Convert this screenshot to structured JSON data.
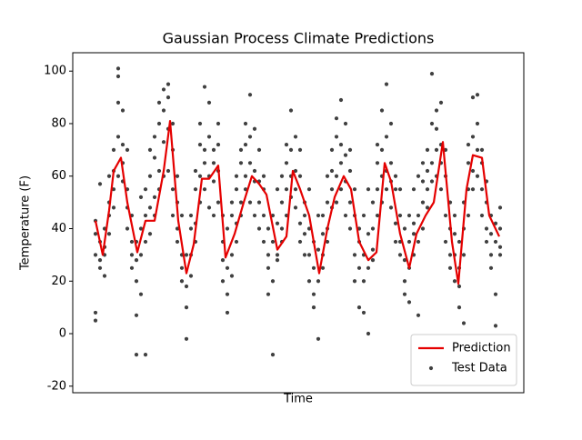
{
  "chart_data": {
    "type": "line",
    "title": "Gaussian Process Climate Predictions",
    "x_label": "Time",
    "y_label": "Temperature (F)",
    "xlim": [
      0,
      99.2
    ],
    "ylim": [
      -22.5,
      107
    ],
    "yticks": [
      -20,
      0,
      20,
      40,
      60,
      80,
      100
    ],
    "legend": "lower right",
    "series": [
      {
        "name": "Prediction",
        "type": "line",
        "color": "#e50000",
        "x": [
          5,
          6.6,
          8,
          9,
          10.6,
          12,
          14.2,
          16,
          18,
          20,
          21.4,
          23.2,
          25,
          26.6,
          28.4,
          30,
          32,
          33.6,
          35.6,
          37.6,
          39.4,
          41,
          42.6,
          45,
          47,
          48.4,
          50,
          52,
          54.2,
          56,
          57.6,
          59.6,
          61.2,
          63,
          65,
          66.8,
          68.6,
          70,
          72,
          74,
          75.6,
          77.6,
          79.4,
          81.4,
          83.4,
          84.8,
          86.6,
          88,
          90,
          91.6,
          93.8
        ],
        "values": [
          43,
          30,
          47,
          62,
          67,
          50,
          31,
          43,
          43,
          62,
          81,
          43,
          23,
          34,
          59,
          59,
          64,
          29,
          38,
          50,
          60,
          57,
          53,
          32,
          37,
          62,
          55,
          45,
          23,
          40,
          52,
          60,
          55,
          35,
          28,
          31,
          65,
          58,
          38,
          25,
          38,
          45,
          50,
          73,
          35,
          19,
          55,
          68,
          67,
          45,
          37
        ]
      },
      {
        "name": "Test Data",
        "type": "scatter",
        "color": "#000000",
        "x": [
          5,
          5,
          5,
          5,
          5,
          6,
          6,
          6,
          6,
          7,
          7,
          7,
          7,
          8,
          8,
          8,
          8,
          9,
          9,
          9,
          9,
          10,
          10,
          10,
          10,
          10,
          11,
          11,
          11,
          11,
          12,
          12,
          12,
          12,
          13,
          13,
          13,
          13,
          14,
          14,
          14,
          14,
          14,
          15,
          15,
          15,
          15,
          16,
          16,
          16,
          16,
          17,
          17,
          17,
          17,
          18,
          18,
          18,
          18,
          19,
          19,
          19,
          19,
          20,
          20,
          20,
          20,
          21,
          21,
          21,
          21,
          22,
          22,
          22,
          22,
          23,
          23,
          23,
          23,
          24,
          24,
          24,
          24,
          25,
          25,
          25,
          25,
          26,
          26,
          26,
          26,
          27,
          27,
          27,
          27,
          28,
          28,
          28,
          28,
          29,
          29,
          29,
          29,
          30,
          30,
          30,
          30,
          31,
          31,
          31,
          31,
          32,
          32,
          32,
          32,
          33,
          33,
          33,
          33,
          34,
          34,
          34,
          34,
          35,
          35,
          35,
          35,
          36,
          36,
          36,
          36,
          37,
          37,
          37,
          37,
          38,
          38,
          38,
          38,
          39,
          39,
          39,
          39,
          40,
          40,
          40,
          40,
          41,
          41,
          41,
          41,
          42,
          42,
          42,
          42,
          43,
          43,
          43,
          43,
          44,
          44,
          44,
          44,
          45,
          45,
          45,
          45,
          46,
          46,
          46,
          46,
          47,
          47,
          47,
          47,
          48,
          48,
          48,
          48,
          49,
          49,
          49,
          49,
          50,
          50,
          50,
          50,
          51,
          51,
          51,
          51,
          52,
          52,
          52,
          52,
          53,
          53,
          53,
          53,
          54,
          54,
          54,
          54,
          55,
          55,
          55,
          55,
          56,
          56,
          56,
          56,
          57,
          57,
          57,
          57,
          58,
          58,
          58,
          58,
          59,
          59,
          59,
          59,
          60,
          60,
          60,
          60,
          61,
          61,
          61,
          61,
          62,
          62,
          62,
          62,
          63,
          63,
          63,
          63,
          64,
          64,
          64,
          64,
          65,
          65,
          65,
          65,
          66,
          66,
          66,
          66,
          67,
          67,
          67,
          67,
          68,
          68,
          68,
          68,
          69,
          69,
          69,
          69,
          70,
          70,
          70,
          70,
          71,
          71,
          71,
          71,
          72,
          72,
          72,
          72,
          73,
          73,
          73,
          73,
          74,
          74,
          74,
          74,
          75,
          75,
          75,
          75,
          76,
          76,
          76,
          76,
          77,
          77,
          77,
          77,
          78,
          78,
          78,
          78,
          79,
          79,
          79,
          79,
          80,
          80,
          80,
          80,
          81,
          81,
          81,
          81,
          82,
          82,
          82,
          82,
          83,
          83,
          83,
          83,
          84,
          84,
          84,
          84,
          85,
          85,
          85,
          85,
          86,
          86,
          86,
          86,
          87,
          87,
          87,
          87,
          88,
          88,
          88,
          88,
          89,
          89,
          89,
          89,
          90,
          90,
          90,
          90,
          91,
          91,
          91,
          91,
          92,
          92,
          92,
          92,
          93,
          93,
          93,
          93,
          94,
          94,
          94,
          94
        ],
        "values": [
          43,
          5,
          8,
          30,
          38,
          28,
          35,
          25,
          57,
          22,
          33,
          40,
          30,
          50,
          45,
          60,
          38,
          70,
          55,
          48,
          62,
          101,
          88,
          75,
          60,
          98,
          85,
          65,
          72,
          58,
          55,
          48,
          70,
          40,
          35,
          30,
          45,
          25,
          7,
          -8,
          20,
          35,
          28,
          15,
          40,
          52,
          30,
          -8,
          45,
          35,
          55,
          60,
          38,
          48,
          70,
          67,
          52,
          75,
          45,
          80,
          62,
          88,
          55,
          93,
          73,
          85,
          60,
          90,
          78,
          62,
          95,
          70,
          55,
          45,
          80,
          50,
          40,
          35,
          60,
          30,
          20,
          25,
          45,
          -2,
          10,
          18,
          30,
          30,
          45,
          22,
          40,
          55,
          42,
          62,
          35,
          72,
          60,
          50,
          80,
          94,
          70,
          65,
          55,
          88,
          60,
          75,
          48,
          70,
          58,
          45,
          65,
          80,
          62,
          50,
          72,
          35,
          28,
          45,
          20,
          15,
          25,
          8,
          40,
          30,
          45,
          22,
          50,
          42,
          55,
          35,
          60,
          65,
          50,
          70,
          45,
          80,
          60,
          55,
          72,
          91,
          65,
          50,
          75,
          78,
          58,
          45,
          62,
          70,
          50,
          40,
          58,
          55,
          45,
          35,
          60,
          40,
          25,
          15,
          30,
          -8,
          20,
          45,
          35,
          30,
          42,
          28,
          55,
          60,
          40,
          35,
          50,
          65,
          55,
          72,
          45,
          85,
          60,
          70,
          52,
          75,
          55,
          48,
          62,
          60,
          42,
          35,
          70,
          45,
          30,
          50,
          38,
          30,
          20,
          40,
          55,
          25,
          10,
          35,
          15,
          -2,
          20,
          32,
          45,
          30,
          45,
          25,
          38,
          50,
          40,
          60,
          35,
          55,
          62,
          48,
          70,
          75,
          60,
          50,
          82,
          89,
          65,
          55,
          72,
          80,
          58,
          68,
          45,
          62,
          50,
          70,
          40,
          45,
          30,
          55,
          20,
          35,
          25,
          40,
          10,
          8,
          30,
          20,
          45,
          0,
          25,
          38,
          55,
          40,
          32,
          50,
          28,
          55,
          65,
          45,
          72,
          85,
          60,
          70,
          50,
          95,
          75,
          62,
          55,
          80,
          58,
          48,
          65,
          55,
          42,
          60,
          35,
          45,
          30,
          35,
          55,
          28,
          20,
          40,
          15,
          25,
          35,
          45,
          12,
          30,
          42,
          55,
          38,
          7,
          45,
          60,
          35,
          50,
          58,
          40,
          65,
          62,
          48,
          70,
          55,
          99,
          80,
          65,
          58,
          85,
          70,
          78,
          60,
          88,
          72,
          65,
          55,
          60,
          45,
          35,
          70,
          40,
          30,
          50,
          25,
          30,
          20,
          38,
          45,
          18,
          25,
          10,
          35,
          4,
          40,
          30,
          50,
          55,
          65,
          45,
          72,
          90,
          75,
          62,
          55,
          91,
          70,
          60,
          80,
          65,
          55,
          45,
          70,
          50,
          40,
          35,
          58,
          38,
          30,
          45,
          25,
          3,
          35,
          42,
          15,
          40,
          30,
          48,
          33
        ]
      }
    ]
  }
}
